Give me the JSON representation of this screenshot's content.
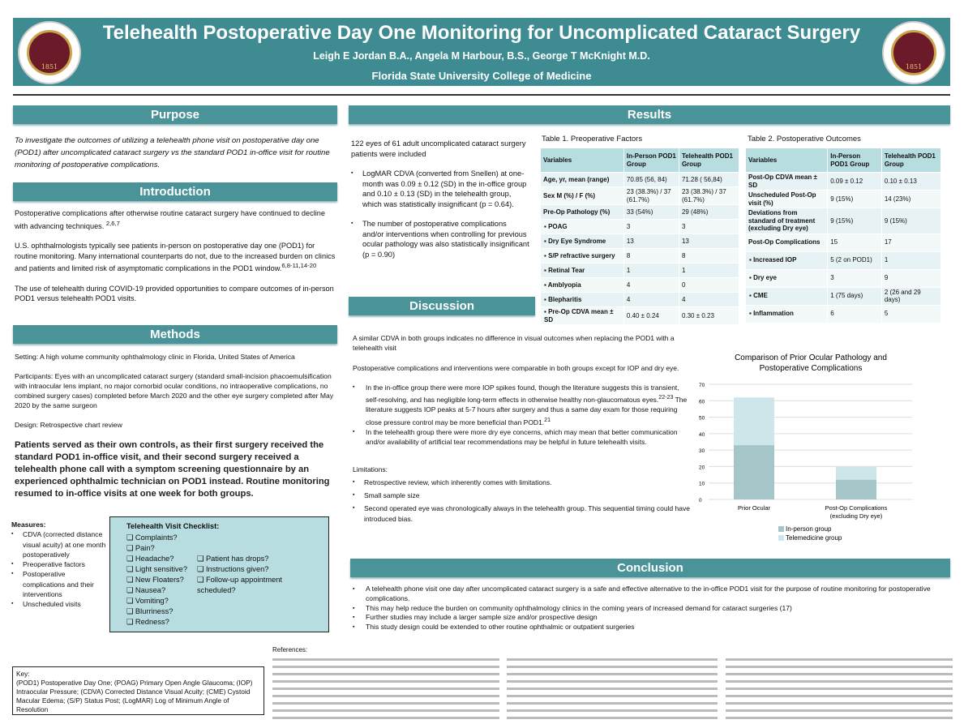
{
  "header": {
    "title": "Telehealth Postoperative Day One Monitoring for Uncomplicated Cataract Surgery",
    "authors": "Leigh E Jordan B.A., Angela M Harbour, B.S., George T McKnight M.D.",
    "institution": "Florida State University College of Medicine",
    "seal_text": "FLORIDA STATE UNIVERSITY 1851"
  },
  "colors": {
    "banner": "#3e8b91",
    "section": "#4a9399",
    "table_header": "#b8dde0",
    "in_person": "#a5c6c8",
    "telemedicine": "#cde6e9"
  },
  "purpose": {
    "heading": "Purpose",
    "text": "To investigate the outcomes of utilizing a telehealth phone visit on postoperative day one (POD1) after uncomplicated cataract surgery vs the standard POD1 in-office visit for routine monitoring of postoperative complications."
  },
  "introduction": {
    "heading": "Introduction",
    "p1": "Postoperative complications after otherwise routine cataract surgery have continued to decline with advancing techniques.",
    "p1_ref": "2,6,7",
    "p2": "U.S. ophthalmologists typically see patients in-person on postoperative day one (POD1) for routine monitoring. Many international counterparts do not, due to the increased burden on clinics and patients and limited risk of asymptomatic complications in the POD1 window.",
    "p2_ref": "6,8-11,14-20",
    "p3": "The use of telehealth during COVID-19 provided opportunities to compare outcomes of in-person POD1 versus telehealth POD1 visits."
  },
  "methods": {
    "heading": "Methods",
    "setting": "Setting: A  high volume community ophthalmology clinic in Florida, United States of America",
    "participants": "Participants: Eyes with an uncomplicated cataract surgery (standard small-incision phacoemulsification with intraocular lens implant, no major comorbid ocular conditions, no intraoperative complications, no combined surgery cases) completed before March 2020 and the other eye surgery completed after May 2020 by the same surgeon",
    "design": "Design: Retrospective chart review",
    "summary": "Patients served as their own controls, as their first surgery received the standard POD1 in-office visit, and their second surgery received a telehealth phone call with a symptom screening questionnaire by an experienced ophthalmic technician on POD1 instead. Routine monitoring resumed to in-office visits at one week for both groups.",
    "measures_label": "Measures:",
    "measures": [
      "CDVA (corrected distance visual acuity) at one month postoperatively",
      "Preoperative factors",
      "Postoperative complications and their interventions",
      "Unscheduled visits"
    ],
    "checklist_title": "Telehealth Visit Checklist:",
    "checklist_left": [
      "Complaints?",
      "Pain?",
      "Headache?",
      "Light sensitive?",
      "New Floaters?",
      "Nausea?",
      "Vomiting?",
      "Blurriness?",
      "Redness?"
    ],
    "checklist_right": [
      "Patient has drops?",
      "Instructions given?",
      "Follow-up appointment scheduled?"
    ]
  },
  "key": {
    "label": "Key:",
    "text": "(POD1) Postoperative Day One; (POAG) Primary Open Angle Glaucoma; (IOP) Intraocular Pressure; (CDVA) Corrected Distance Visual Acuity; (CME) Cystoid Macular Edema; (S/P) Status Post; (LogMAR) Log of Minimum Angle of Resolution"
  },
  "results": {
    "heading": "Results",
    "intro": "122 eyes of 61 adult uncomplicated cataract surgery patients were included",
    "bullets": [
      "LogMAR CDVA (converted from Snellen) at one-month was 0.09 ± 0.12 (SD) in the in-office group and 0.10 ± 0.13 (SD) in the telehealth group, which was statistically insignificant (p = 0.64).",
      "The number of postoperative complications and/or interventions when controlling for previous ocular pathology was also statistically insignificant (p = 0.90)"
    ]
  },
  "table1": {
    "caption": "Table 1. Preoperative Factors",
    "headers": [
      "Variables",
      "In-Person POD1 Group",
      "Telehealth POD1 Group"
    ],
    "rows": [
      [
        "Age, yr, mean (range)",
        "70.85  (56, 84)",
        "71.28 ( 56,84)"
      ],
      [
        "Sex M (%) / F (%)",
        "23 (38.3%) / 37 (61.7%)",
        "23 (38.3%) / 37 (61.7%)"
      ],
      [
        "Pre-Op Pathology (%)",
        "33 (54%)",
        "29 (48%)"
      ],
      [
        "POAG",
        "3",
        "3"
      ],
      [
        "Dry Eye Syndrome",
        "13",
        "13"
      ],
      [
        "S/P refractive surgery",
        "8",
        "8"
      ],
      [
        "Retinal Tear",
        "1",
        "1"
      ],
      [
        "Amblyopia",
        "4",
        "0"
      ],
      [
        "Blepharitis",
        "4",
        "4"
      ],
      [
        "Pre-Op CDVA mean ± SD",
        "0.40 ± 0.24",
        "0.30 ± 0.23"
      ]
    ]
  },
  "table2": {
    "caption": "Table 2. Postoperative Outcomes",
    "headers": [
      "Variables",
      "In-Person POD1 Group",
      "Telehealth POD1 Group"
    ],
    "rows": [
      [
        "Post-Op CDVA mean ± SD",
        "0.09 ± 0.12",
        "0.10 ± 0.13"
      ],
      [
        "Unscheduled Post-Op visit (%)",
        "9 (15%)",
        "14 (23%)"
      ],
      [
        "Deviations from standard of treatment (excluding Dry eye)",
        "9 (15%)",
        "9 (15%)"
      ],
      [
        "Post-Op Complications",
        "15",
        "17"
      ],
      [
        "Increased IOP",
        "5 (2 on POD1)",
        "1"
      ],
      [
        "Dry eye",
        "3",
        "9"
      ],
      [
        "CME",
        "1 (75 days)",
        "2 (26 and 29 days)"
      ],
      [
        "Inflammation",
        "6",
        "5"
      ]
    ]
  },
  "chart_data": {
    "type": "bar",
    "stacked": true,
    "title": "Comparison of Prior Ocular Pathology and Postoperative Complications",
    "categories": [
      "Prior Ocular",
      "Post-Op Complications (excluding Dry eye)"
    ],
    "series": [
      {
        "name": "In-person group",
        "values": [
          33,
          12
        ]
      },
      {
        "name": "Telemedicine group",
        "values": [
          29,
          8
        ]
      }
    ],
    "ylim": [
      0,
      70
    ],
    "yticks": [
      0,
      10,
      20,
      30,
      40,
      50,
      60,
      70
    ],
    "grid": true,
    "legend": "bottom"
  },
  "discussion": {
    "heading": "Discussion",
    "p1": "A similar CDVA in both groups indicates no difference in visual outcomes when replacing the POD1 with a telehealth visit",
    "p2": "Postoperative complications and interventions were comparable in both groups except for IOP and dry eye.",
    "b1": "In the in-office group there were more IOP spikes found, though the literature suggests this is transient, self-resolving, and has negligible long-term effects in otherwise healthy non-glaucomatous eyes.",
    "b1_ref1": "22-23",
    "b1b": " The literature suggests IOP peaks at 5-7 hours after surgery and thus a same day exam for those requiring close pressure control may be more beneficial than POD1.",
    "b1_ref2": "21",
    "b2": "In the telehealth group there were more dry eye concerns, which may mean that better communication and/or availability of artificial tear recommendations may be helpful in future telehealth visits.",
    "limitations_label": "Limitations:",
    "limitations": [
      "Retrospective review, which inherently comes with limitations.",
      "Small sample size",
      "Second operated eye was chronologically always in the telehealth group. This sequential timing could have introduced bias."
    ]
  },
  "conclusion": {
    "heading": "Conclusion",
    "bullets": [
      "A telehealth phone visit one day after uncomplicated cataract surgery is a safe and effective alternative to the in-office POD1 visit for the purpose of routine monitoring for postoperative complications.",
      "This may help reduce the burden on community ophthalmology clinics in the coming years of increased demand for cataract surgeries (17)",
      "Further studies may include a larger sample size and/or prospective design",
      "This study design could be extended to other routine ophthalmic or outpatient surgeries"
    ]
  },
  "references": {
    "heading": "References:"
  }
}
